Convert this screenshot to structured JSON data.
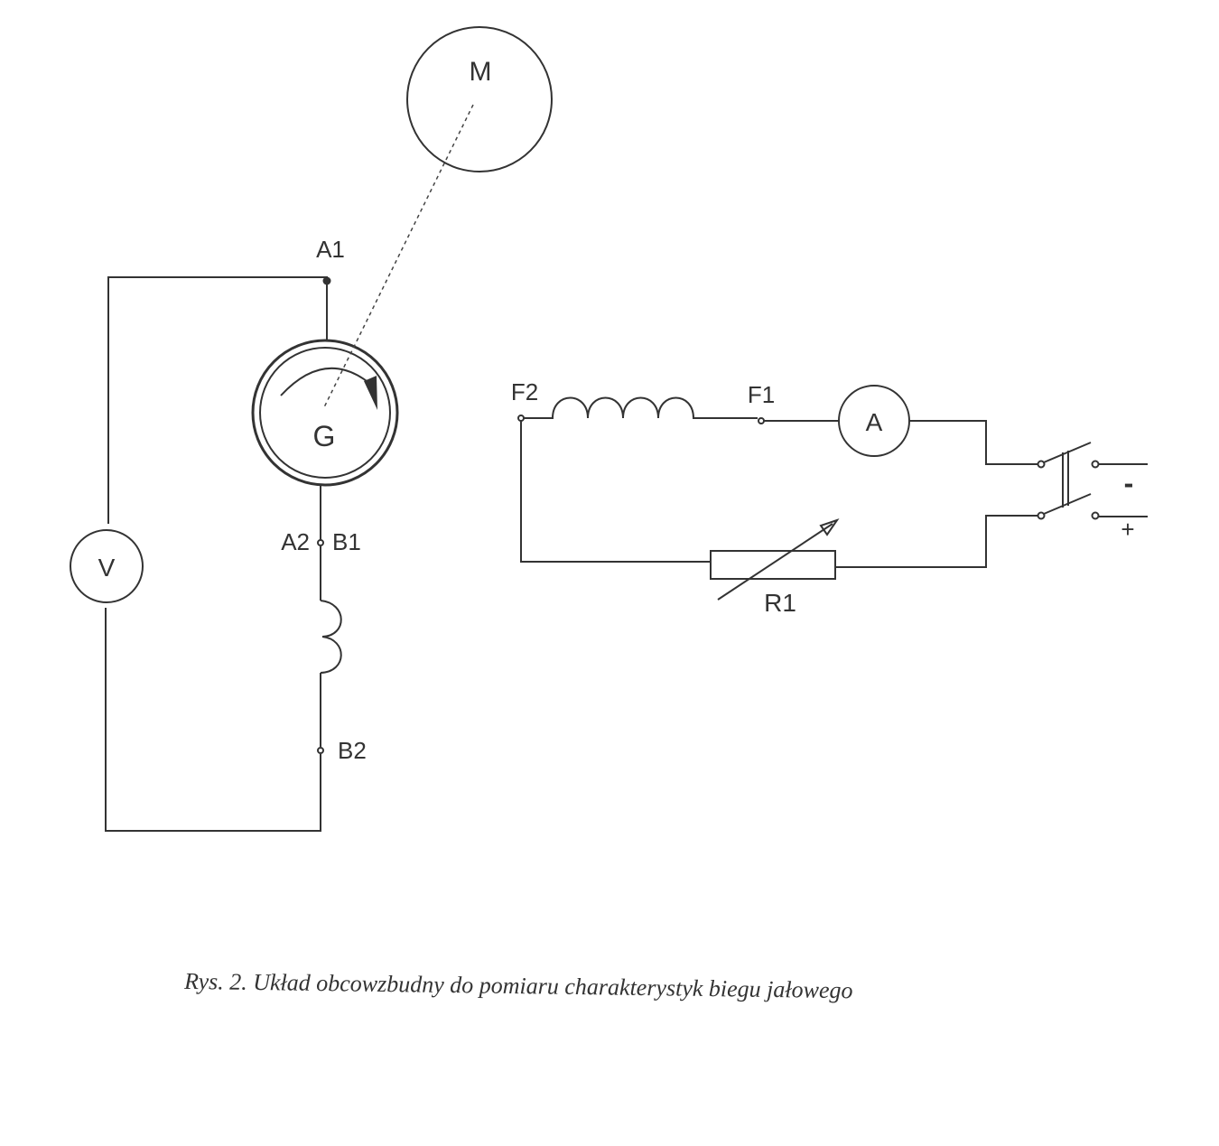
{
  "labels": {
    "motor": "M",
    "generator": "G",
    "voltmeter": "V",
    "ammeter": "A",
    "terminal_a1": "A1",
    "terminal_a2": "A2",
    "terminal_b1": "B1",
    "terminal_b2": "B2",
    "terminal_f1": "F1",
    "terminal_f2": "F2",
    "resistor": "R1",
    "supply_minus": "-",
    "supply_plus": "+"
  },
  "caption": "Rys. 2. Układ obcowzbudny do pomiaru charakterystyk biegu jałowego"
}
